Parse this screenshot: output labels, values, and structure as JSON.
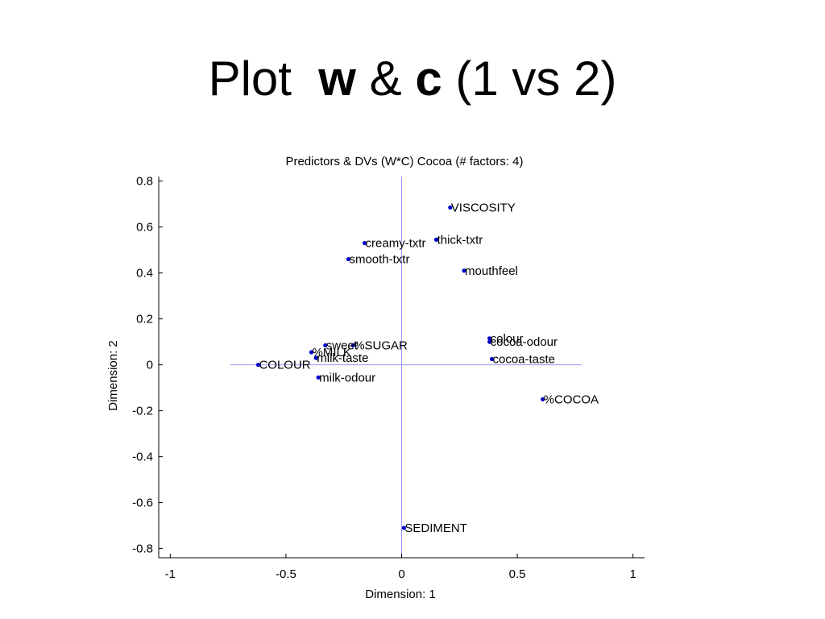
{
  "slide": {
    "title_prefix": "Plot",
    "title_bold_w": "w",
    "title_amp": "&",
    "title_bold_c": "c",
    "title_suffix": "(1 vs 2)"
  },
  "chart_data": {
    "type": "scatter",
    "title": "Predictors & DVs (W*C) Cocoa (# factors: 4)",
    "xlabel": "Dimension: 1",
    "ylabel": "Dimension: 2",
    "xlim": [
      -1.05,
      1.05
    ],
    "ylim": [
      -0.84,
      0.82
    ],
    "xticks": [
      -1,
      -0.5,
      0,
      0.5,
      1
    ],
    "xtick_labels": [
      "-1",
      "-0.5",
      "0",
      "0.5",
      "1"
    ],
    "yticks": [
      0.8,
      0.6,
      0.4,
      0.2,
      0,
      -0.2,
      -0.4,
      -0.6,
      -0.8
    ],
    "ytick_labels": [
      "0.8",
      "0.6",
      "0.4",
      "0.2",
      "0",
      "-0.2",
      "-0.4",
      "-0.6",
      "-0.8"
    ],
    "marker_color": "#0000cc",
    "axis_line_color": "#9999ff",
    "points": [
      {
        "label": "VISCOSITY",
        "x": 0.21,
        "y": 0.685
      },
      {
        "label": "thick-txtr",
        "x": 0.15,
        "y": 0.545
      },
      {
        "label": "creamy-txtr",
        "x": -0.16,
        "y": 0.53
      },
      {
        "label": "smooth-txtr",
        "x": -0.23,
        "y": 0.46
      },
      {
        "label": "mouthfeel",
        "x": 0.27,
        "y": 0.41
      },
      {
        "label": "colour",
        "x": 0.38,
        "y": 0.115
      },
      {
        "label": "cocoa-odour",
        "x": 0.38,
        "y": 0.1
      },
      {
        "label": "cocoa-taste",
        "x": 0.39,
        "y": 0.025
      },
      {
        "label": "%SUGAR",
        "x": -0.21,
        "y": 0.085
      },
      {
        "label": "sweet",
        "x": -0.33,
        "y": 0.085
      },
      {
        "label": "%MILK",
        "x": -0.39,
        "y": 0.055
      },
      {
        "label": "milk-taste",
        "x": -0.37,
        "y": 0.03
      },
      {
        "label": "COLOUR",
        "x": -0.62,
        "y": 0.0
      },
      {
        "label": "milk-odour",
        "x": -0.36,
        "y": -0.055
      },
      {
        "label": "%COCOA",
        "x": 0.61,
        "y": -0.15
      },
      {
        "label": "SEDIMENT",
        "x": 0.01,
        "y": -0.71
      }
    ]
  }
}
